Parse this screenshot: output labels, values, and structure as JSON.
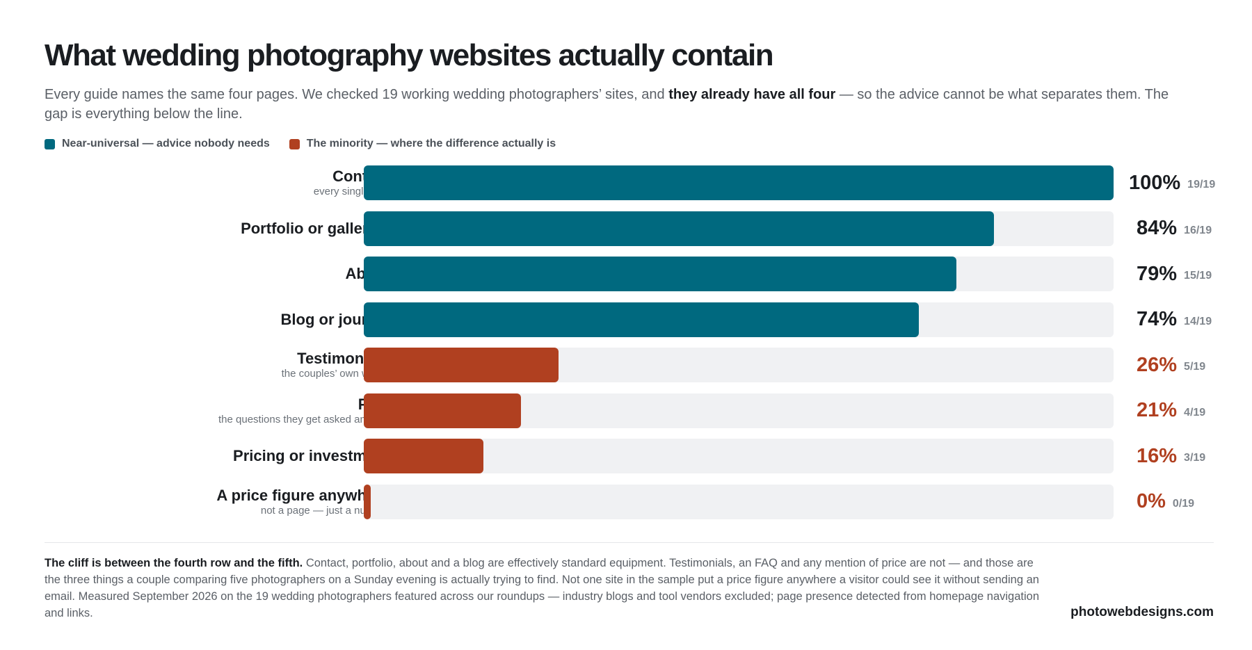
{
  "title": "What wedding photography websites actually contain",
  "subtitle": {
    "part1": "Every guide names the same four pages. We checked 19 working wedding photographers’ sites, and ",
    "bold": "they already have all four",
    "part2": " — so the advice cannot be what separates them. The gap is everything below the line."
  },
  "legend": {
    "universal": "Near-universal — advice nobody needs",
    "minority": "The minority — where the difference actually is"
  },
  "colors": {
    "universal": "#00697f",
    "minority": "#b04020",
    "track": "#f0f1f3"
  },
  "chart_data": {
    "type": "bar",
    "orientation": "horizontal",
    "xlim": [
      0,
      100
    ],
    "categories": [
      "Contact",
      "Portfolio or galleries",
      "About",
      "Blog or journal",
      "Testimonials",
      "FAQ",
      "Pricing or investment",
      "A price figure anywhere"
    ],
    "values": [
      100,
      84,
      79,
      74,
      26,
      21,
      16,
      0
    ],
    "rows": [
      {
        "label": "Contact",
        "sublabel": "every single one",
        "value": 100,
        "pct": "100%",
        "frac": "19/19",
        "group": "universal"
      },
      {
        "label": "Portfolio or galleries",
        "sublabel": "",
        "value": 84,
        "pct": "84%",
        "frac": "16/19",
        "group": "universal"
      },
      {
        "label": "About",
        "sublabel": "",
        "value": 79,
        "pct": "79%",
        "frac": "15/19",
        "group": "universal"
      },
      {
        "label": "Blog or journal",
        "sublabel": "",
        "value": 74,
        "pct": "74%",
        "frac": "14/19",
        "group": "universal"
      },
      {
        "label": "Testimonials",
        "sublabel": "the couples’ own words",
        "value": 26,
        "pct": "26%",
        "frac": "5/19",
        "group": "minority"
      },
      {
        "label": "FAQ",
        "sublabel": "the questions they get asked anyway",
        "value": 21,
        "pct": "21%",
        "frac": "4/19",
        "group": "minority"
      },
      {
        "label": "Pricing or investment",
        "sublabel": "",
        "value": 16,
        "pct": "16%",
        "frac": "3/19",
        "group": "minority"
      },
      {
        "label": "A price figure anywhere",
        "sublabel": "not a page — just a number",
        "value": 0,
        "pct": "0%",
        "frac": "0/19",
        "group": "minority"
      }
    ]
  },
  "footnote": {
    "bold": "The cliff is between the fourth row and the fifth.",
    "text": " Contact, portfolio, about and a blog are effectively standard equipment. Testimonials, an FAQ and any mention of price are not — and those are the three things a couple comparing five photographers on a Sunday evening is actually trying to find. Not one site in the sample put a price figure anywhere a visitor could see it without sending an email. Measured September 2026 on the 19 wedding photographers featured across our roundups — industry blogs and tool vendors excluded; page presence detected from homepage navigation and links."
  },
  "source": "photowebdesigns.com"
}
